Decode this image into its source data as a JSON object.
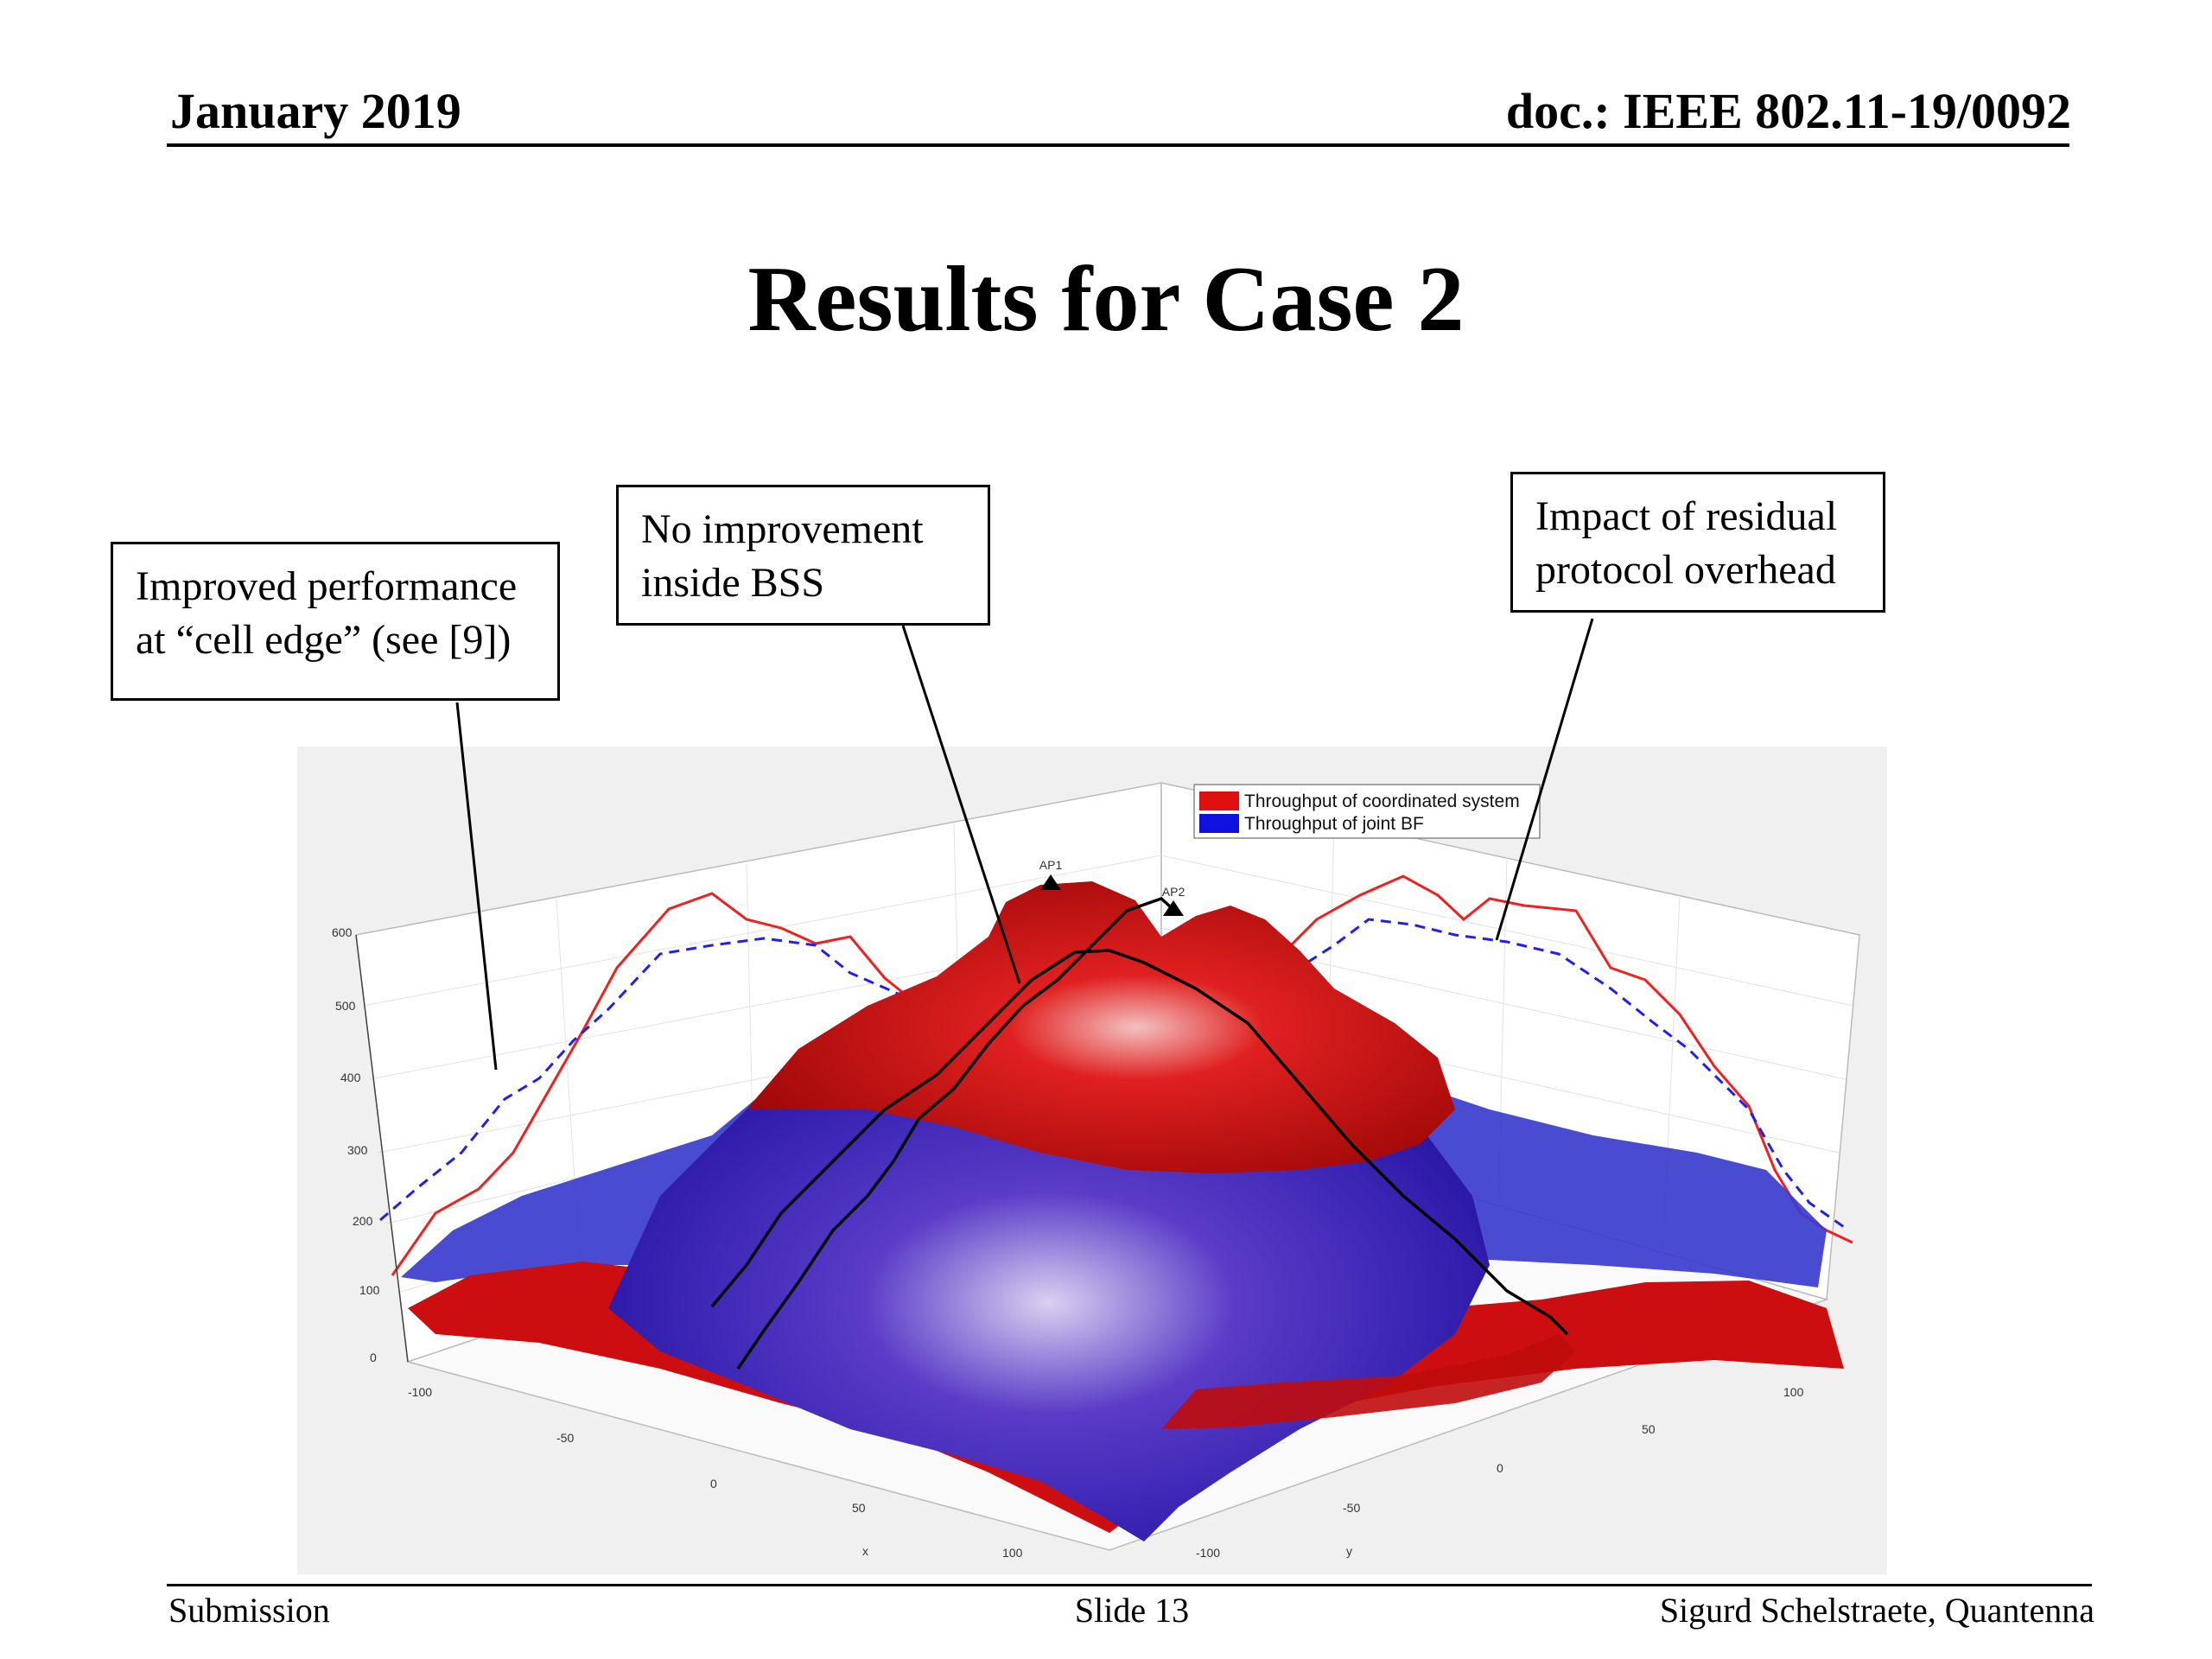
{
  "header": {
    "date": "January 2019",
    "doc_id": "doc.: IEEE 802.11-19/0092"
  },
  "slide_title": "Results for Case 2",
  "callouts": {
    "left": [
      "Improved performance",
      "at “cell edge” (see [9])"
    ],
    "middle": [
      "No improvement",
      "inside BSS"
    ],
    "right": [
      "Impact of residual",
      "protocol overhead"
    ]
  },
  "chart": {
    "legend": [
      {
        "label": "Throughput of coordinated system",
        "color": "#e01010"
      },
      {
        "label": "Throughput of joint BF",
        "color": "#1010e0"
      }
    ],
    "markers": [
      "AP1",
      "AP2"
    ],
    "z_ticks": [
      "0",
      "100",
      "200",
      "300",
      "400",
      "500",
      "600"
    ],
    "x_ticks": [
      "-100",
      "-50",
      "0",
      "50",
      "100"
    ],
    "y_ticks": [
      "100",
      "50",
      "0",
      "-50",
      "-100"
    ],
    "x_label": "x",
    "y_label": "y",
    "colors": {
      "coordinated": "#d40e0e",
      "joint_bf": "#2a12b8",
      "line_red": "#ee2020",
      "line_blue": "#2020ee"
    }
  },
  "footer": {
    "left": "Submission",
    "center": "Slide 13",
    "right": "Sigurd Schelstraete, Quantenna"
  }
}
